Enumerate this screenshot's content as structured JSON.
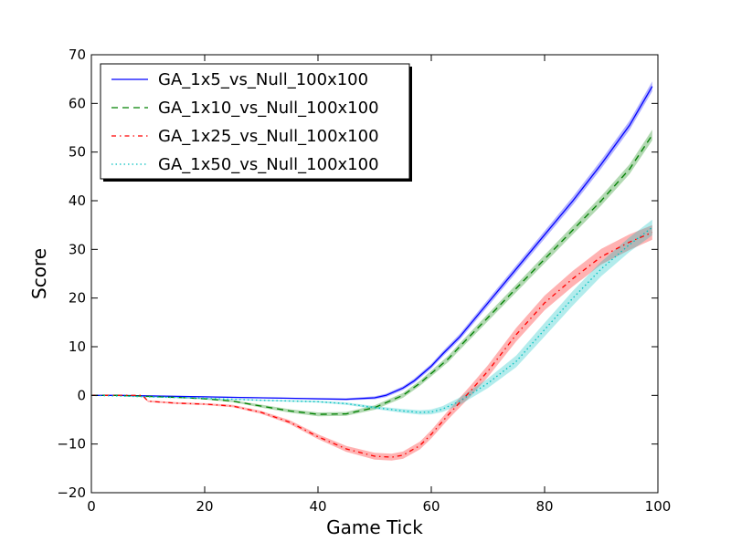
{
  "chart_data": {
    "type": "line",
    "title": "",
    "xlabel": "Game Tick",
    "ylabel": "Score",
    "xlim": [
      0,
      100
    ],
    "ylim": [
      -20,
      70
    ],
    "xticks": [
      0,
      20,
      40,
      60,
      80,
      100
    ],
    "yticks": [
      -20,
      -10,
      0,
      10,
      20,
      30,
      40,
      50,
      60,
      70
    ],
    "grid": false,
    "legend_position": "top-left",
    "series": [
      {
        "name": "GA_1x5_vs_Null_100x100",
        "color": "#0000ff",
        "line_style": "solid",
        "x": [
          0,
          5,
          10,
          15,
          20,
          25,
          30,
          35,
          40,
          45,
          50,
          52,
          55,
          57,
          60,
          62,
          65,
          70,
          75,
          80,
          85,
          90,
          95,
          99
        ],
        "y": [
          0,
          0,
          -0.1,
          -0.2,
          -0.3,
          -0.4,
          -0.5,
          -0.6,
          -0.7,
          -0.8,
          -0.5,
          0,
          1.5,
          3,
          6,
          8.5,
          12,
          19,
          26,
          33,
          40,
          47.5,
          55.5,
          63.5
        ],
        "band": [
          0,
          0,
          0.1,
          0.1,
          0.1,
          0.1,
          0.1,
          0.1,
          0.15,
          0.2,
          0.3,
          0.35,
          0.4,
          0.45,
          0.5,
          0.55,
          0.6,
          0.7,
          0.75,
          0.8,
          0.85,
          0.9,
          0.95,
          1.0
        ]
      },
      {
        "name": "GA_1x10_vs_Null_100x100",
        "color": "#008000",
        "line_style": "dashed",
        "x": [
          0,
          5,
          10,
          15,
          20,
          25,
          30,
          35,
          40,
          45,
          50,
          55,
          58,
          60,
          63,
          65,
          70,
          75,
          80,
          85,
          90,
          95,
          99
        ],
        "y": [
          0,
          0,
          -0.2,
          -0.4,
          -0.7,
          -1.2,
          -2.2,
          -3.2,
          -3.9,
          -3.8,
          -2.5,
          0,
          2.5,
          4.5,
          7.5,
          10,
          16,
          22,
          28,
          34,
          40,
          46.5,
          53.5
        ],
        "band": [
          0,
          0,
          0.1,
          0.1,
          0.15,
          0.2,
          0.3,
          0.35,
          0.4,
          0.4,
          0.45,
          0.5,
          0.55,
          0.6,
          0.65,
          0.7,
          0.75,
          0.8,
          0.85,
          0.9,
          0.95,
          1.0,
          1.1
        ]
      },
      {
        "name": "GA_1x25_vs_Null_100x100",
        "color": "#ff0000",
        "line_style": "dashdot",
        "x": [
          0,
          9,
          10,
          15,
          20,
          25,
          30,
          35,
          40,
          45,
          50,
          53,
          55,
          58,
          60,
          63,
          65,
          67,
          70,
          75,
          80,
          85,
          90,
          95,
          99
        ],
        "y": [
          0,
          0,
          -1.2,
          -1.6,
          -1.8,
          -2.2,
          -3.5,
          -5.5,
          -8.5,
          -11,
          -12.5,
          -12.7,
          -12.3,
          -10.3,
          -8,
          -4,
          -1.5,
          1,
          5,
          12.5,
          19,
          24,
          28.5,
          31.5,
          33.5
        ],
        "band": [
          0,
          0,
          0.2,
          0.2,
          0.2,
          0.25,
          0.3,
          0.4,
          0.5,
          0.6,
          0.7,
          0.7,
          0.75,
          0.8,
          0.85,
          0.9,
          1.0,
          1.1,
          1.2,
          1.4,
          1.5,
          1.6,
          1.6,
          1.6,
          1.5
        ]
      },
      {
        "name": "GA_1x50_vs_Null_100x100",
        "color": "#00bfbf",
        "line_style": "dotted",
        "x": [
          0,
          10,
          20,
          30,
          40,
          45,
          50,
          55,
          58,
          60,
          62,
          65,
          68,
          70,
          75,
          80,
          85,
          90,
          95,
          99
        ],
        "y": [
          0,
          -0.3,
          -0.6,
          -1,
          -1.3,
          -1.7,
          -2.5,
          -3.2,
          -3.5,
          -3.4,
          -2.8,
          -1.2,
          1,
          2.5,
          7,
          13.5,
          20,
          26,
          31,
          34.5
        ],
        "band": [
          0,
          0.1,
          0.1,
          0.15,
          0.2,
          0.25,
          0.3,
          0.4,
          0.45,
          0.5,
          0.6,
          0.75,
          0.9,
          1.0,
          1.2,
          1.4,
          1.5,
          1.5,
          1.5,
          1.6
        ]
      }
    ]
  }
}
